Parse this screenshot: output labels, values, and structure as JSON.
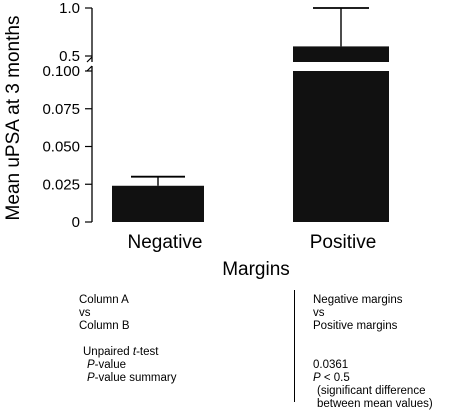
{
  "chart_data": {
    "type": "bar",
    "categories": [
      "Negative",
      "Positive"
    ],
    "values": [
      0.024,
      0.6
    ],
    "errors_upper": [
      0.006,
      0.4
    ],
    "xlabel": "Margins",
    "ylabel": "Mean uPSA at 3 months",
    "y_axis_broken": true,
    "ylim_lower": [
      0,
      0.1
    ],
    "ylim_upper": [
      0.2,
      1.0
    ],
    "yticks_lower": [
      "0",
      "0.025",
      "0.050",
      "0.075",
      "0.100"
    ],
    "yticks_upper": [
      "0.5",
      "1.0"
    ],
    "bar_color": "#111111"
  },
  "stats": {
    "left": {
      "row1": "Column A",
      "row2": "vs",
      "row3": "Column B",
      "test_prefix": "Unpaired ",
      "test_italic": "t",
      "test_suffix": "-test",
      "pval_italic": "P",
      "pval_suffix": "-value",
      "summary_italic": "P",
      "summary_suffix": "-value summary"
    },
    "right": {
      "row1": "Negative margins",
      "row2": "vs",
      "row3": "Positive margins",
      "pvalue": "0.0361",
      "summary_italic": "P",
      "summary_suffix": " < 0.5",
      "note1": "(significant difference",
      "note2": "between mean values)"
    }
  }
}
